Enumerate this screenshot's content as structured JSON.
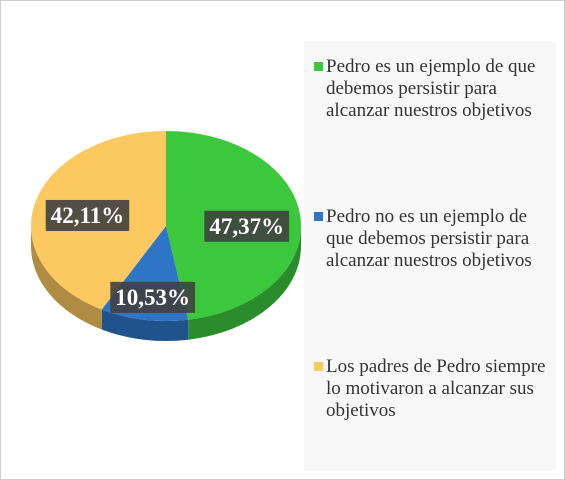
{
  "chart_data": {
    "type": "pie",
    "categories": [
      "Pedro es un ejemplo de que debemos persistir para alcanzar nuestros objetivos",
      "Pedro no es un ejemplo de que debemos persistir para alcanzar nuestros objetivos",
      "Los padres de Pedro siempre lo motivaron a alcanzar sus objetivos"
    ],
    "values": [
      47.37,
      10.53,
      42.11
    ],
    "value_labels": [
      "47,37%",
      "10,53%",
      "42,11%"
    ],
    "colors": [
      "#3cc83c",
      "#2e75c6",
      "#fcc860"
    ]
  }
}
